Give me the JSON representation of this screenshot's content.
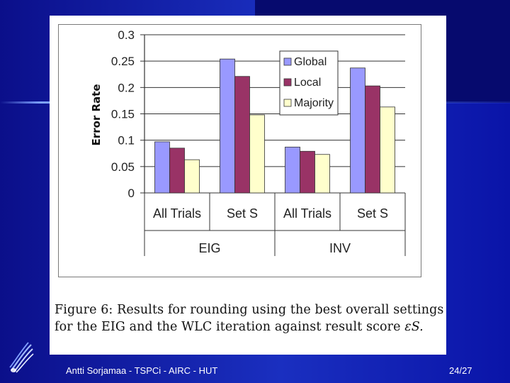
{
  "slide": {
    "footer_text": "Antti Sorjamaa - TSPCi - AIRC - HUT",
    "page_number": "24/27",
    "logo_icon": "hut-logo-icon",
    "colors": {
      "background": "#1a2fc0",
      "panel": "#ffffff"
    }
  },
  "caption": {
    "text": "Figure 6: Results for rounding using the best overall settings for the EIG and the WLC iteration against result score",
    "symbol": "εS."
  },
  "chart_data": {
    "type": "bar",
    "title": "",
    "xlabel": "",
    "ylabel": "Error Rate",
    "ylim": [
      0,
      0.3
    ],
    "yticks": [
      "0",
      "0.05",
      "0.1",
      "0.15",
      "0.2",
      "0.25",
      "0.3"
    ],
    "grid": true,
    "legend_position": "top-right",
    "categories": [
      "All Trials",
      "Set S",
      "All Trials",
      "Set S"
    ],
    "groups": [
      {
        "label": "EIG",
        "categories": [
          0,
          1
        ]
      },
      {
        "label": "INV",
        "categories": [
          2,
          3
        ]
      }
    ],
    "series": [
      {
        "name": "Global",
        "color": "#9999ff",
        "values": [
          0.097,
          0.254,
          0.087,
          0.237
        ]
      },
      {
        "name": "Local",
        "color": "#993366",
        "values": [
          0.085,
          0.221,
          0.079,
          0.203
        ]
      },
      {
        "name": "Majority",
        "color": "#ffffcc",
        "values": [
          0.063,
          0.148,
          0.073,
          0.163
        ]
      }
    ]
  }
}
